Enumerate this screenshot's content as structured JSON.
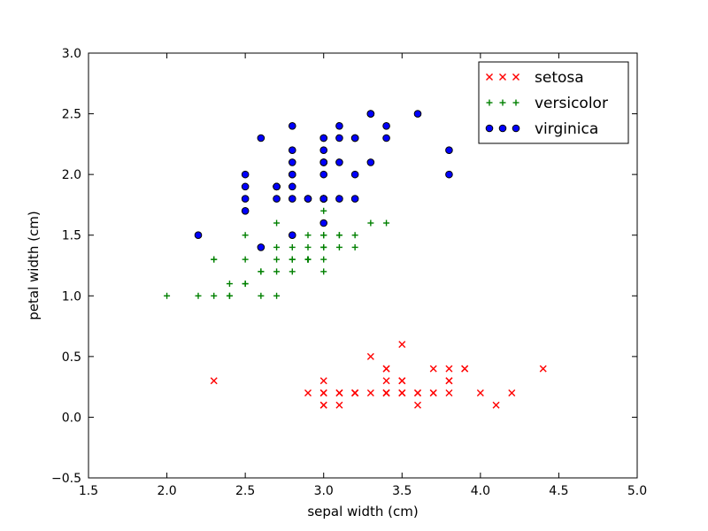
{
  "chart_data": {
    "type": "scatter",
    "title": "",
    "xlabel": "sepal width (cm)",
    "ylabel": "petal width (cm)",
    "xlim": [
      1.5,
      5.0
    ],
    "ylim": [
      -0.5,
      3.0
    ],
    "xticks": [
      1.5,
      2.0,
      2.5,
      3.0,
      3.5,
      4.0,
      4.5,
      5.0
    ],
    "yticks": [
      -0.5,
      0.0,
      0.5,
      1.0,
      1.5,
      2.0,
      2.5,
      3.0
    ],
    "xtick_labels": [
      "1.5",
      "2.0",
      "2.5",
      "3.0",
      "3.5",
      "4.0",
      "4.5",
      "5.0"
    ],
    "ytick_labels": [
      "−0.5",
      "0.0",
      "0.5",
      "1.0",
      "1.5",
      "2.0",
      "2.5",
      "3.0"
    ],
    "grid": false,
    "legend_position": "top-right",
    "series": [
      {
        "name": "setosa",
        "marker": "x",
        "color": "#ff0000",
        "points": [
          [
            3.5,
            0.2
          ],
          [
            3.0,
            0.2
          ],
          [
            3.2,
            0.2
          ],
          [
            3.1,
            0.2
          ],
          [
            3.6,
            0.2
          ],
          [
            3.9,
            0.4
          ],
          [
            3.4,
            0.3
          ],
          [
            3.4,
            0.2
          ],
          [
            2.9,
            0.2
          ],
          [
            3.1,
            0.1
          ],
          [
            3.7,
            0.2
          ],
          [
            3.4,
            0.2
          ],
          [
            3.0,
            0.1
          ],
          [
            3.0,
            0.1
          ],
          [
            4.0,
            0.2
          ],
          [
            4.4,
            0.4
          ],
          [
            3.9,
            0.4
          ],
          [
            3.5,
            0.3
          ],
          [
            3.8,
            0.3
          ],
          [
            3.8,
            0.3
          ],
          [
            3.4,
            0.2
          ],
          [
            3.7,
            0.4
          ],
          [
            3.6,
            0.2
          ],
          [
            3.3,
            0.5
          ],
          [
            3.4,
            0.2
          ],
          [
            3.0,
            0.2
          ],
          [
            3.4,
            0.4
          ],
          [
            3.5,
            0.2
          ],
          [
            3.4,
            0.2
          ],
          [
            3.2,
            0.2
          ],
          [
            3.1,
            0.2
          ],
          [
            3.4,
            0.4
          ],
          [
            4.1,
            0.1
          ],
          [
            4.2,
            0.2
          ],
          [
            3.1,
            0.2
          ],
          [
            3.2,
            0.2
          ],
          [
            3.5,
            0.2
          ],
          [
            3.6,
            0.1
          ],
          [
            3.0,
            0.2
          ],
          [
            3.4,
            0.2
          ],
          [
            3.5,
            0.3
          ],
          [
            2.3,
            0.3
          ],
          [
            3.2,
            0.2
          ],
          [
            3.5,
            0.6
          ],
          [
            3.8,
            0.4
          ],
          [
            3.0,
            0.3
          ],
          [
            3.8,
            0.2
          ],
          [
            3.2,
            0.2
          ],
          [
            3.7,
            0.2
          ],
          [
            3.3,
            0.2
          ]
        ]
      },
      {
        "name": "versicolor",
        "marker": "+",
        "color": "#008000",
        "points": [
          [
            3.2,
            1.4
          ],
          [
            3.2,
            1.5
          ],
          [
            3.1,
            1.5
          ],
          [
            2.3,
            1.3
          ],
          [
            2.8,
            1.5
          ],
          [
            2.8,
            1.3
          ],
          [
            3.3,
            1.6
          ],
          [
            2.4,
            1.0
          ],
          [
            2.9,
            1.3
          ],
          [
            2.7,
            1.4
          ],
          [
            2.0,
            1.0
          ],
          [
            3.0,
            1.5
          ],
          [
            2.2,
            1.0
          ],
          [
            2.9,
            1.4
          ],
          [
            2.9,
            1.3
          ],
          [
            3.1,
            1.4
          ],
          [
            3.0,
            1.5
          ],
          [
            2.7,
            1.0
          ],
          [
            2.2,
            1.5
          ],
          [
            2.5,
            1.1
          ],
          [
            3.2,
            1.8
          ],
          [
            2.8,
            1.3
          ],
          [
            2.5,
            1.5
          ],
          [
            2.8,
            1.2
          ],
          [
            2.9,
            1.3
          ],
          [
            3.0,
            1.4
          ],
          [
            2.8,
            1.4
          ],
          [
            3.0,
            1.7
          ],
          [
            2.9,
            1.5
          ],
          [
            2.6,
            1.0
          ],
          [
            2.4,
            1.1
          ],
          [
            2.4,
            1.0
          ],
          [
            2.7,
            1.2
          ],
          [
            2.7,
            1.6
          ],
          [
            3.0,
            1.5
          ],
          [
            3.4,
            1.6
          ],
          [
            3.1,
            1.5
          ],
          [
            2.3,
            1.3
          ],
          [
            3.0,
            1.3
          ],
          [
            2.5,
            1.3
          ],
          [
            2.6,
            1.2
          ],
          [
            3.0,
            1.4
          ],
          [
            2.6,
            1.2
          ],
          [
            2.3,
            1.0
          ],
          [
            2.7,
            1.3
          ],
          [
            3.0,
            1.2
          ],
          [
            2.9,
            1.3
          ],
          [
            2.9,
            1.3
          ],
          [
            2.5,
            1.1
          ],
          [
            2.8,
            1.3
          ]
        ]
      },
      {
        "name": "virginica",
        "marker": "o",
        "color": "#0000ff",
        "points": [
          [
            3.3,
            2.5
          ],
          [
            2.7,
            1.9
          ],
          [
            3.0,
            2.1
          ],
          [
            2.9,
            1.8
          ],
          [
            3.0,
            2.2
          ],
          [
            3.0,
            2.1
          ],
          [
            2.5,
            1.7
          ],
          [
            2.9,
            1.8
          ],
          [
            2.5,
            1.8
          ],
          [
            3.6,
            2.5
          ],
          [
            3.2,
            2.0
          ],
          [
            2.7,
            1.9
          ],
          [
            3.0,
            2.1
          ],
          [
            2.5,
            2.0
          ],
          [
            2.8,
            2.4
          ],
          [
            3.2,
            2.3
          ],
          [
            3.0,
            1.8
          ],
          [
            3.8,
            2.2
          ],
          [
            2.6,
            2.3
          ],
          [
            2.2,
            1.5
          ],
          [
            3.2,
            2.3
          ],
          [
            2.8,
            2.0
          ],
          [
            2.8,
            2.0
          ],
          [
            2.7,
            1.8
          ],
          [
            3.3,
            2.1
          ],
          [
            3.2,
            1.8
          ],
          [
            2.8,
            1.8
          ],
          [
            3.0,
            1.8
          ],
          [
            2.8,
            2.1
          ],
          [
            3.0,
            1.6
          ],
          [
            2.8,
            1.9
          ],
          [
            3.8,
            2.0
          ],
          [
            2.8,
            2.2
          ],
          [
            2.8,
            1.5
          ],
          [
            2.6,
            1.4
          ],
          [
            3.0,
            2.3
          ],
          [
            3.4,
            2.4
          ],
          [
            3.1,
            1.8
          ],
          [
            3.0,
            1.8
          ],
          [
            3.1,
            2.1
          ],
          [
            3.1,
            2.4
          ],
          [
            3.1,
            2.3
          ],
          [
            2.7,
            1.9
          ],
          [
            3.2,
            2.3
          ],
          [
            3.3,
            2.5
          ],
          [
            3.0,
            2.3
          ],
          [
            2.5,
            1.9
          ],
          [
            3.0,
            2.0
          ],
          [
            3.4,
            2.3
          ],
          [
            3.0,
            1.8
          ]
        ]
      }
    ]
  }
}
